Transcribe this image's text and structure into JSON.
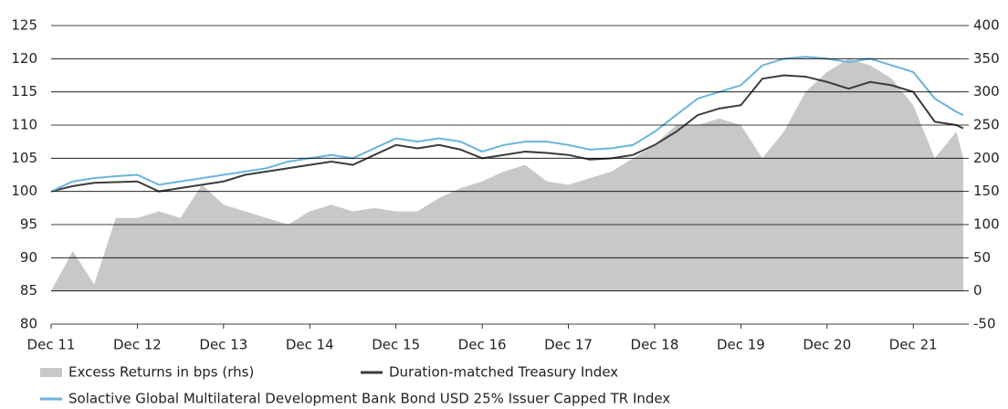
{
  "chart_data": {
    "type": "line",
    "x": [
      2011.92,
      2012.17,
      2012.42,
      2012.67,
      2012.92,
      2013.17,
      2013.42,
      2013.67,
      2013.92,
      2014.17,
      2014.42,
      2014.67,
      2014.92,
      2015.17,
      2015.42,
      2015.67,
      2015.92,
      2016.17,
      2016.42,
      2016.67,
      2016.92,
      2017.17,
      2017.42,
      2017.67,
      2017.92,
      2018.17,
      2018.42,
      2018.67,
      2018.92,
      2019.17,
      2019.42,
      2019.67,
      2019.92,
      2020.17,
      2020.42,
      2020.67,
      2020.92,
      2021.17,
      2021.42,
      2021.67,
      2021.92,
      2022.17,
      2022.42,
      2022.5
    ],
    "series": [
      {
        "name": "Excess Returns in bps (rhs)",
        "color": "#c8c8c8",
        "axis": "y2",
        "style": "area",
        "values": [
          0,
          60,
          10,
          110,
          110,
          120,
          110,
          160,
          130,
          120,
          110,
          100,
          120,
          130,
          120,
          125,
          120,
          120,
          140,
          155,
          165,
          180,
          190,
          165,
          160,
          170,
          180,
          200,
          220,
          250,
          250,
          260,
          250,
          200,
          240,
          300,
          330,
          350,
          340,
          320,
          280,
          200,
          240,
          200
        ]
      },
      {
        "name": "Duration-matched Treasury Index",
        "color": "#3c3c3c",
        "values": [
          100,
          100.8,
          101.3,
          101.4,
          101.5,
          100,
          100.5,
          101,
          101.5,
          102.5,
          103,
          103.5,
          104,
          104.5,
          104,
          105.5,
          107,
          106.5,
          107,
          106.3,
          105,
          105.5,
          106,
          105.8,
          105.5,
          104.8,
          105,
          105.5,
          107,
          109,
          111.5,
          112.5,
          113,
          117,
          117.5,
          117.3,
          116.5,
          115.5,
          116.5,
          116,
          115,
          110.5,
          110,
          109.5
        ]
      },
      {
        "name": "Solactive Global Multilateral Development Bank Bond USD 25% Issuer Capped TR Index",
        "color": "#6ab4dc",
        "values": [
          100,
          101.5,
          102,
          102.3,
          102.5,
          101,
          101.5,
          102,
          102.5,
          103,
          103.5,
          104.5,
          105,
          105.5,
          105,
          106.5,
          108,
          107.5,
          108,
          107.5,
          106,
          107,
          107.5,
          107.5,
          107,
          106.3,
          106.5,
          107,
          109,
          111.5,
          114,
          115,
          116,
          119,
          120,
          120.3,
          120,
          119.5,
          120,
          119,
          118,
          114,
          112,
          111.5
        ]
      }
    ],
    "xlim": [
      2011.92,
      2022.5
    ],
    "xticks": [
      {
        "value": 2011.92,
        "label": "Dec 11"
      },
      {
        "value": 2012.92,
        "label": "Dec 12"
      },
      {
        "value": 2013.92,
        "label": "Dec 13"
      },
      {
        "value": 2014.92,
        "label": "Dec 14"
      },
      {
        "value": 2015.92,
        "label": "Dec 15"
      },
      {
        "value": 2016.92,
        "label": "Dec 16"
      },
      {
        "value": 2017.92,
        "label": "Dec 17"
      },
      {
        "value": 2018.92,
        "label": "Dec 18"
      },
      {
        "value": 2019.92,
        "label": "Dec 19"
      },
      {
        "value": 2020.92,
        "label": "Dec 20"
      },
      {
        "value": 2021.92,
        "label": "Dec 21"
      }
    ],
    "ylim": [
      80,
      125
    ],
    "yticks": [
      80,
      85,
      90,
      95,
      100,
      105,
      110,
      115,
      120,
      125
    ],
    "y2lim": [
      -50,
      400
    ],
    "y2ticks": [
      -50,
      0,
      50,
      100,
      150,
      200,
      250,
      300,
      350,
      400
    ],
    "grid": true
  }
}
